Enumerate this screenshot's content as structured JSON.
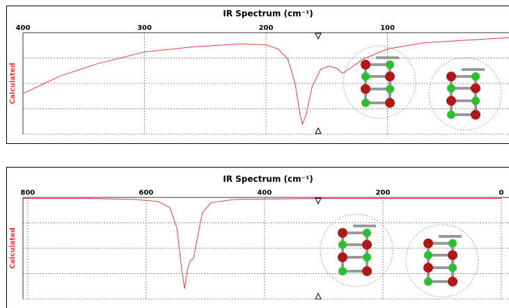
{
  "chart_data": [
    {
      "type": "line",
      "title": "IR Spectrum (cm⁻¹)",
      "y_label": "Calculated",
      "xlim": [
        400,
        0
      ],
      "xticks": [
        400,
        300,
        200,
        100
      ],
      "ylim": [
        0,
        1
      ],
      "grid": true,
      "color": "#e8393a",
      "x": [
        400,
        370,
        340,
        300,
        260,
        220,
        200,
        190,
        182,
        176,
        172,
        170,
        167,
        162,
        155,
        148,
        142,
        137,
        132,
        120,
        100,
        70,
        30,
        0
      ],
      "values": [
        0.4,
        0.57,
        0.69,
        0.81,
        0.86,
        0.89,
        0.88,
        0.84,
        0.74,
        0.5,
        0.19,
        0.1,
        0.19,
        0.47,
        0.64,
        0.67,
        0.65,
        0.6,
        0.64,
        0.74,
        0.84,
        0.9,
        0.93,
        0.95
      ]
    },
    {
      "type": "line",
      "title": "IR Spectrum (cm⁻¹)",
      "y_label": "Calculated",
      "xlim": [
        808,
        -13
      ],
      "xticks": [
        800,
        600,
        400,
        200,
        0
      ],
      "ylim": [
        0,
        1
      ],
      "grid": true,
      "color": "#e8393a",
      "x": [
        808,
        700,
        620,
        580,
        560,
        548,
        540,
        535,
        530,
        525,
        520,
        515,
        505,
        490,
        450,
        300,
        0
      ],
      "values": [
        0.99,
        0.99,
        0.98,
        0.96,
        0.9,
        0.7,
        0.3,
        0.1,
        0.3,
        0.38,
        0.4,
        0.55,
        0.85,
        0.95,
        0.98,
        0.99,
        0.99
      ]
    }
  ]
}
